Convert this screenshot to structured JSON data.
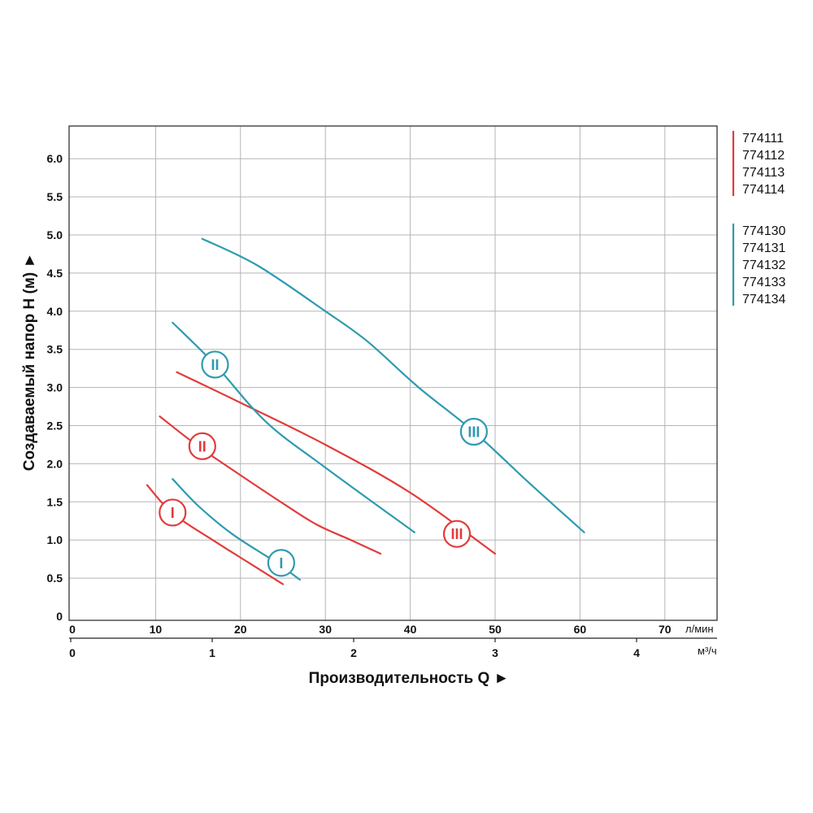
{
  "chart_data": {
    "type": "line",
    "xlabel": "Производительность Q ►",
    "ylabel": "Создаваемый напор H (м) ►",
    "x_unit": "л/мин",
    "x2_unit": "м³/ч",
    "xlim": [
      0,
      76
    ],
    "ylim": [
      0,
      6.5
    ],
    "x_ticks": [
      "0",
      "10",
      "20",
      "30",
      "40",
      "50",
      "60",
      "70"
    ],
    "x2_ticks": [
      "0",
      "1",
      "2",
      "3",
      "4"
    ],
    "y_ticks": [
      "0",
      "0.5",
      "1.0",
      "1.5",
      "2.0",
      "2.5",
      "3.0",
      "3.5",
      "4.0",
      "4.5",
      "5.0",
      "5.5",
      "6.0"
    ],
    "grid": true,
    "colors": {
      "red": "#e23b3b",
      "teal": "#2e9bb0"
    },
    "legend": [
      {
        "color": "red",
        "items": [
          "774111",
          "774112",
          "774113",
          "774114"
        ]
      },
      {
        "color": "teal",
        "items": [
          "774130",
          "774131",
          "774132",
          "774133",
          "774134"
        ]
      }
    ],
    "series": [
      {
        "label": "I",
        "color": "red",
        "marker_at": [
          12,
          1.36
        ],
        "points": [
          [
            9,
            1.72
          ],
          [
            12,
            1.35
          ],
          [
            17,
            0.98
          ],
          [
            21,
            0.7
          ],
          [
            25,
            0.42
          ]
        ]
      },
      {
        "label": "II",
        "color": "red",
        "marker_at": [
          15.5,
          2.23
        ],
        "points": [
          [
            10.5,
            2.62
          ],
          [
            15,
            2.23
          ],
          [
            20,
            1.85
          ],
          [
            25,
            1.48
          ],
          [
            29,
            1.2
          ],
          [
            33,
            1.0
          ],
          [
            36.5,
            0.82
          ]
        ]
      },
      {
        "label": "III",
        "color": "red",
        "marker_at": [
          45.5,
          1.08
        ],
        "points": [
          [
            12.5,
            3.2
          ],
          [
            20,
            2.8
          ],
          [
            30,
            2.25
          ],
          [
            40,
            1.62
          ],
          [
            50,
            0.82
          ]
        ]
      },
      {
        "label": "I",
        "color": "teal",
        "marker_at": [
          24.8,
          0.7
        ],
        "points": [
          [
            12,
            1.8
          ],
          [
            15,
            1.45
          ],
          [
            19,
            1.08
          ],
          [
            24,
            0.72
          ],
          [
            27,
            0.48
          ]
        ]
      },
      {
        "label": "II",
        "color": "teal",
        "marker_at": [
          17,
          3.3
        ],
        "points": [
          [
            12,
            3.85
          ],
          [
            17,
            3.3
          ],
          [
            23,
            2.55
          ],
          [
            30,
            1.95
          ],
          [
            40.5,
            1.1
          ]
        ]
      },
      {
        "label": "III",
        "color": "teal",
        "marker_at": [
          47.5,
          2.42
        ],
        "points": [
          [
            15.5,
            4.95
          ],
          [
            22,
            4.6
          ],
          [
            30,
            4.0
          ],
          [
            35,
            3.6
          ],
          [
            41,
            3.0
          ],
          [
            47.5,
            2.42
          ],
          [
            54,
            1.75
          ],
          [
            60.5,
            1.1
          ]
        ]
      }
    ]
  }
}
